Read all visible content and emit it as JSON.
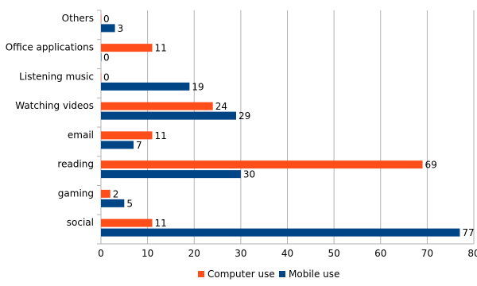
{
  "chart_data": {
    "type": "bar",
    "orientation": "horizontal",
    "categories": [
      "Others",
      "Office applications",
      "Listening music",
      "Watching videos",
      "email",
      "reading",
      "gaming",
      "social"
    ],
    "series": [
      {
        "name": "Computer use",
        "color": "#ff4e1a",
        "values": [
          0,
          11,
          0,
          24,
          11,
          69,
          2,
          11
        ]
      },
      {
        "name": "Mobile use",
        "color": "#004586",
        "values": [
          3,
          0,
          19,
          29,
          7,
          30,
          5,
          77
        ]
      }
    ],
    "xlim": [
      0,
      80
    ],
    "xticks": [
      0,
      10,
      20,
      30,
      40,
      50,
      60,
      70,
      80
    ],
    "grid": "vertical",
    "legend_position": "bottom",
    "title": "",
    "xlabel": "",
    "ylabel": "",
    "colors": {
      "grid": "#b3b3b3",
      "axis": "#b3b3b3"
    }
  }
}
